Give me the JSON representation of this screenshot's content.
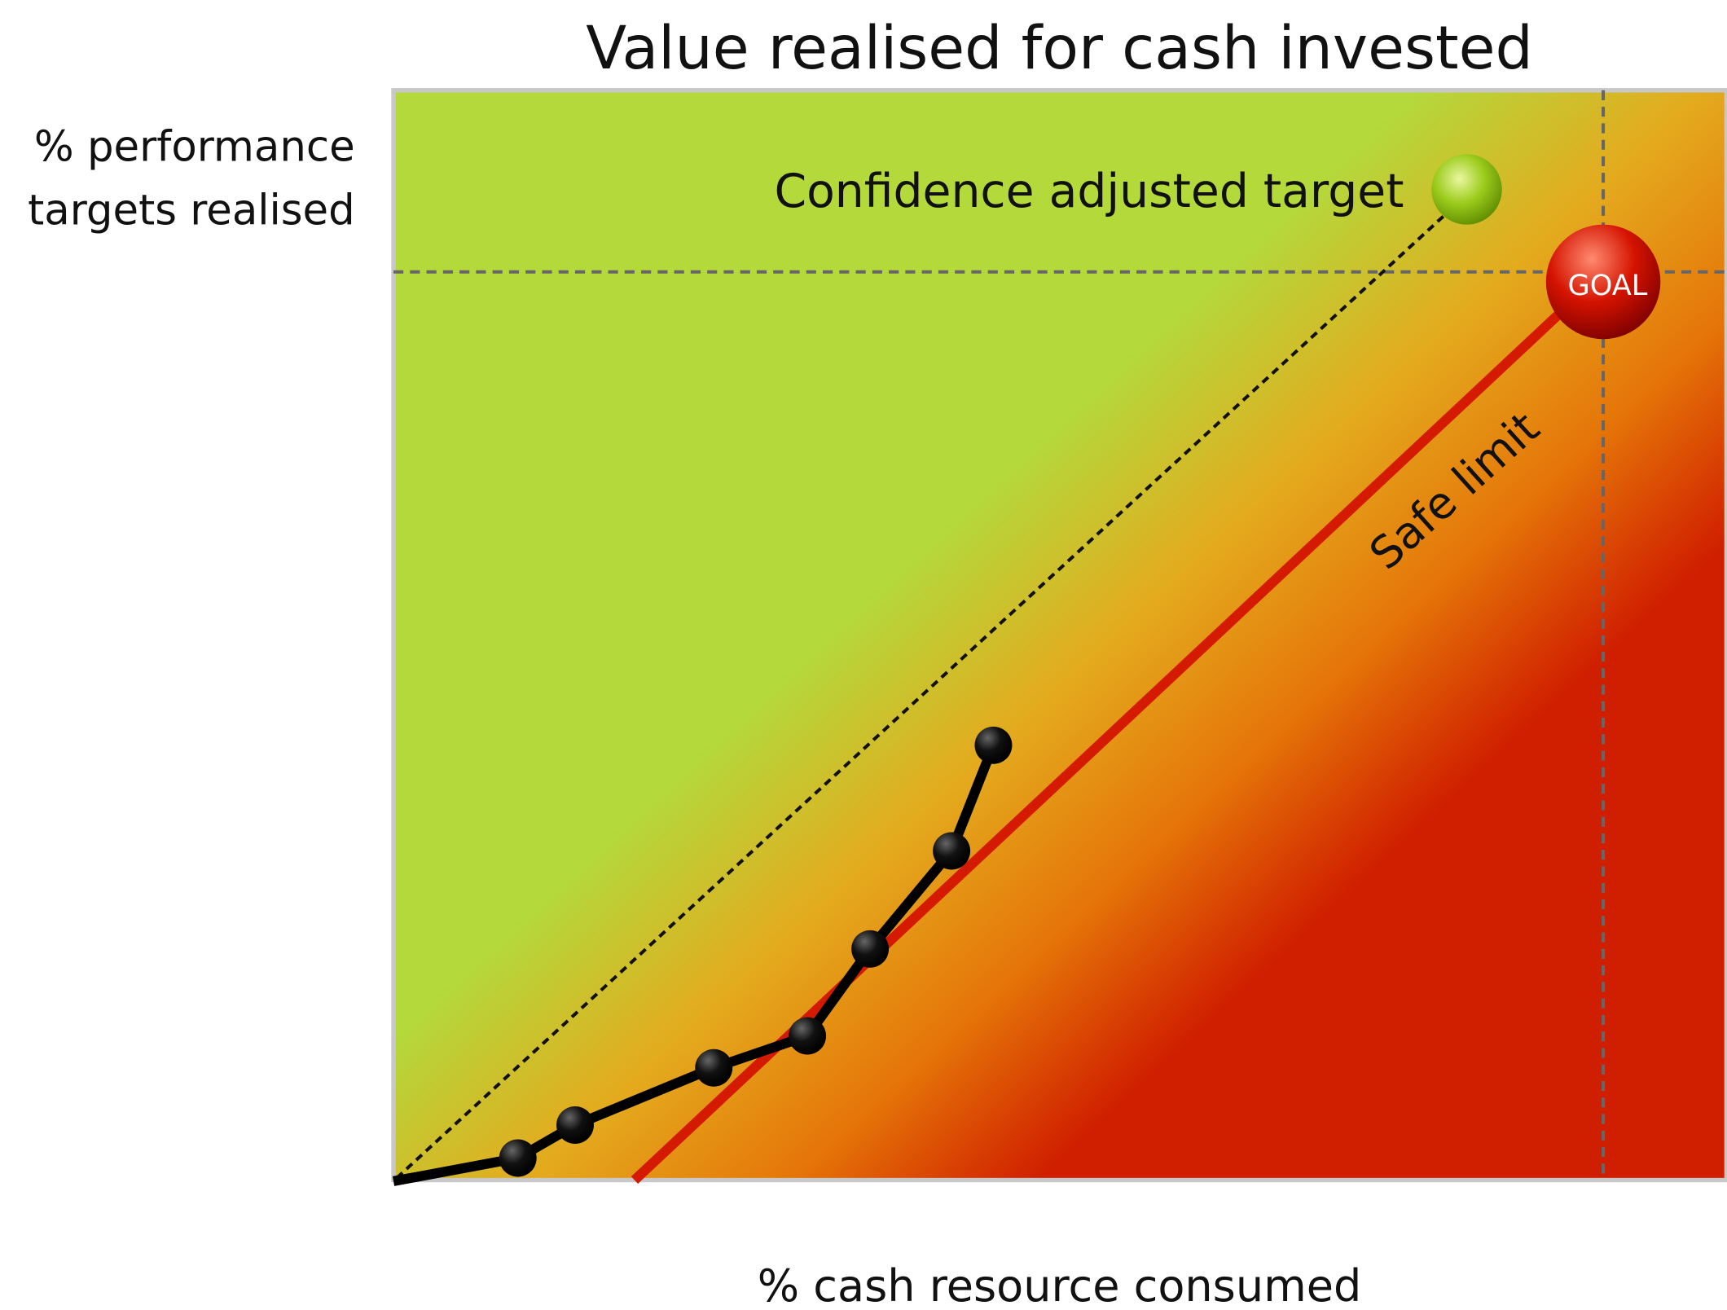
{
  "title": "Value realised for cash invested",
  "y_label": [
    "% performance",
    "targets realised"
  ],
  "x_label": "% cash resource consumed",
  "annotations": {
    "target": "Confidence adjusted target",
    "goal": "GOAL",
    "safe_limit": "Safe limit"
  }
}
